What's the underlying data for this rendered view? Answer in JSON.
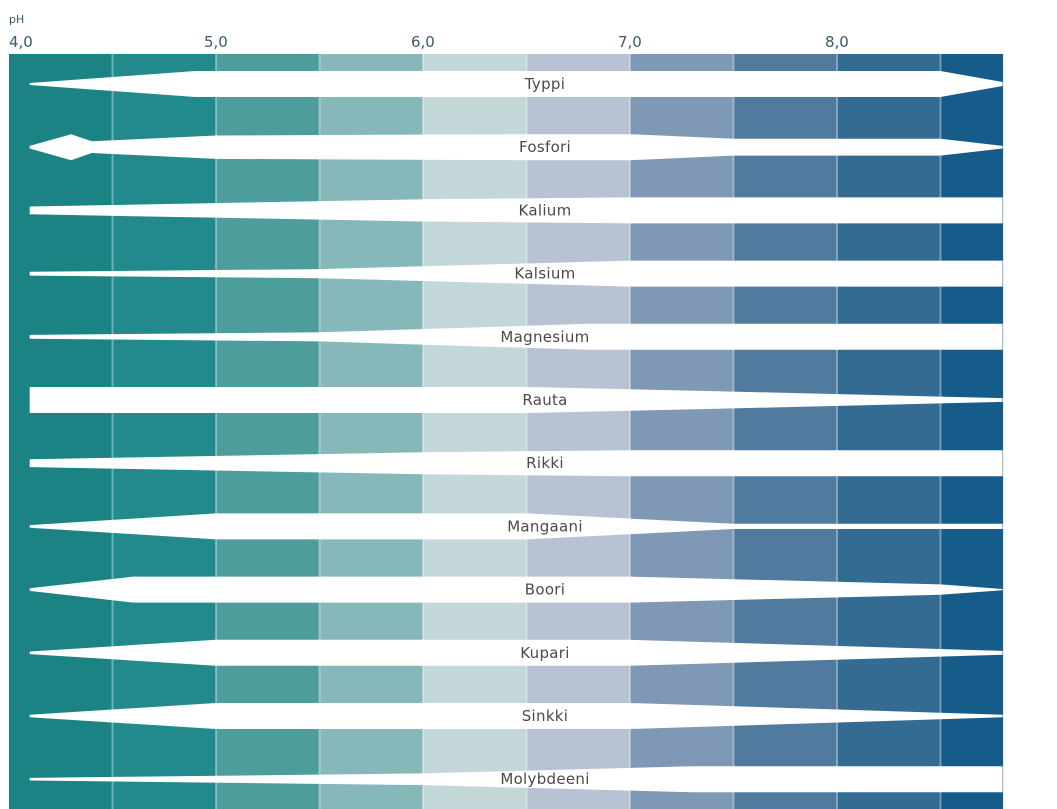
{
  "chart_data": {
    "type": "band",
    "xlabel": "pH",
    "xlim": [
      4.0,
      8.8
    ],
    "ticks": [
      {
        "value": 4.0,
        "label": "4,0"
      },
      {
        "value": 5.0,
        "label": "5,0"
      },
      {
        "value": 6.0,
        "label": "6,0"
      },
      {
        "value": 7.0,
        "label": "7,0"
      },
      {
        "value": 8.0,
        "label": "8,0"
      }
    ],
    "zones": [
      {
        "from": 4.0,
        "to": 4.5,
        "color": "#1b8384"
      },
      {
        "from": 4.5,
        "to": 5.0,
        "color": "#228a8c"
      },
      {
        "from": 5.0,
        "to": 5.5,
        "color": "#4d9d9d"
      },
      {
        "from": 5.5,
        "to": 6.0,
        "color": "#86b8ba"
      },
      {
        "from": 6.0,
        "to": 6.5,
        "color": "#c3d6d8"
      },
      {
        "from": 6.5,
        "to": 7.0,
        "color": "#b7c3d3"
      },
      {
        "from": 7.0,
        "to": 7.5,
        "color": "#7f98b5"
      },
      {
        "from": 7.5,
        "to": 8.0,
        "color": "#507a9e"
      },
      {
        "from": 8.0,
        "to": 8.5,
        "color": "#336b93"
      },
      {
        "from": 8.5,
        "to": 8.8,
        "color": "#155c8a"
      }
    ],
    "nutrients": [
      {
        "name": "Typpi",
        "profile": [
          [
            4.1,
            0.08
          ],
          [
            4.9,
            1
          ],
          [
            8.5,
            1
          ],
          [
            8.8,
            0.15
          ]
        ]
      },
      {
        "name": "Fosfori",
        "profile": [
          [
            4.1,
            0.1
          ],
          [
            4.3,
            1
          ],
          [
            4.4,
            0.45
          ],
          [
            5.0,
            0.9
          ],
          [
            6.5,
            1
          ],
          [
            7.0,
            1
          ],
          [
            7.5,
            0.65
          ],
          [
            8.5,
            0.65
          ],
          [
            8.8,
            0.1
          ]
        ]
      },
      {
        "name": "Kalium",
        "profile": [
          [
            4.1,
            0.3
          ],
          [
            6.0,
            0.85
          ],
          [
            7.0,
            1
          ],
          [
            8.8,
            1
          ]
        ]
      },
      {
        "name": "Kalsium",
        "profile": [
          [
            4.1,
            0.15
          ],
          [
            5.5,
            0.35
          ],
          [
            7.0,
            1
          ],
          [
            8.8,
            1
          ]
        ]
      },
      {
        "name": "Magnesium",
        "profile": [
          [
            4.1,
            0.15
          ],
          [
            5.5,
            0.35
          ],
          [
            6.8,
            1
          ],
          [
            8.8,
            1
          ]
        ]
      },
      {
        "name": "Rauta",
        "profile": [
          [
            4.1,
            1
          ],
          [
            6.5,
            1
          ],
          [
            7.5,
            0.65
          ],
          [
            8.8,
            0.15
          ]
        ]
      },
      {
        "name": "Rikki",
        "profile": [
          [
            4.1,
            0.3
          ],
          [
            6.0,
            0.85
          ],
          [
            7.0,
            1
          ],
          [
            8.8,
            1
          ]
        ]
      },
      {
        "name": "Mangaani",
        "profile": [
          [
            4.1,
            0.1
          ],
          [
            5.0,
            1
          ],
          [
            6.5,
            1
          ],
          [
            7.5,
            0.2
          ],
          [
            8.8,
            0.2
          ]
        ]
      },
      {
        "name": "Boori",
        "profile": [
          [
            4.1,
            0.1
          ],
          [
            4.6,
            1
          ],
          [
            7.0,
            1
          ],
          [
            8.5,
            0.4
          ],
          [
            8.8,
            0.05
          ]
        ]
      },
      {
        "name": "Kupari",
        "profile": [
          [
            4.1,
            0.1
          ],
          [
            5.0,
            1
          ],
          [
            7.0,
            1
          ],
          [
            8.8,
            0.15
          ]
        ]
      },
      {
        "name": "Sinkki",
        "profile": [
          [
            4.1,
            0.1
          ],
          [
            5.0,
            1
          ],
          [
            7.0,
            1
          ],
          [
            8.8,
            0.1
          ]
        ]
      },
      {
        "name": "Molybdeeni",
        "profile": [
          [
            4.1,
            0.1
          ],
          [
            6.0,
            0.45
          ],
          [
            7.3,
            1
          ],
          [
            8.8,
            1
          ]
        ]
      }
    ]
  }
}
